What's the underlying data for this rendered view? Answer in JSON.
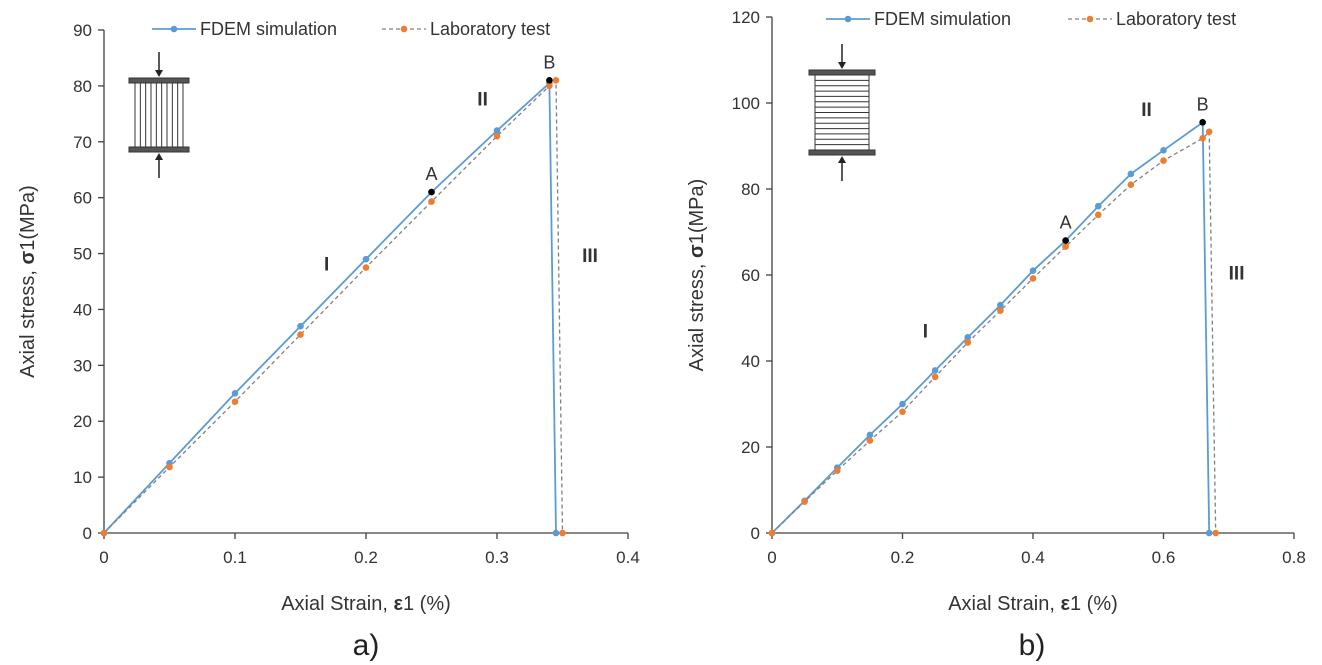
{
  "colors": {
    "fdem": "#5b9bd5",
    "lab": "#ed7d31",
    "lab_line": "#808080",
    "marker": "#000000"
  },
  "chart_data": [
    {
      "type": "line",
      "panel_label": "a)",
      "xlabel_prefix": "Axial Strain, ",
      "xlabel_symbol": "ε",
      "xlabel_suffix": "1 (%)",
      "ylabel_prefix": "Axial stress, ",
      "ylabel_symbol": "σ",
      "ylabel_suffix": "1(MPa)",
      "xlim": [
        0,
        0.4
      ],
      "ylim": [
        0,
        90
      ],
      "xticks": [
        "0",
        "0.1",
        "0.2",
        "0.3",
        "0.4"
      ],
      "yticks": [
        "0",
        "10",
        "20",
        "30",
        "40",
        "50",
        "60",
        "70",
        "80",
        "90"
      ],
      "grid": false,
      "legend_position": "top",
      "series": [
        {
          "name": "FDEM simulation",
          "style": "solid",
          "x": [
            0,
            0.05,
            0.1,
            0.15,
            0.2,
            0.25,
            0.3,
            0.34,
            0.345
          ],
          "y": [
            0,
            12.5,
            25,
            37,
            49,
            61,
            72,
            80.5,
            0
          ]
        },
        {
          "name": "Laboratory test",
          "style": "dashed",
          "x": [
            0,
            0.05,
            0.1,
            0.15,
            0.2,
            0.25,
            0.3,
            0.34,
            0.345,
            0.35
          ],
          "y": [
            0,
            11.8,
            23.5,
            35.5,
            47.5,
            59.3,
            71,
            80,
            81,
            0
          ]
        }
      ],
      "points": [
        {
          "label": "A",
          "x": 0.25,
          "y": 61
        },
        {
          "label": "B",
          "x": 0.34,
          "y": 81
        }
      ],
      "regions": [
        {
          "label": "I",
          "x": 0.17,
          "y": 47
        },
        {
          "label": "II",
          "x": 0.289,
          "y": 76.5
        },
        {
          "label": "III",
          "x": 0.371,
          "y": 48.5
        }
      ],
      "specimen": "vertical"
    },
    {
      "type": "line",
      "panel_label": "b)",
      "xlabel_prefix": "Axial Strain, ",
      "xlabel_symbol": "ε",
      "xlabel_suffix": "1 (%)",
      "ylabel_prefix": "Axial stress, ",
      "ylabel_symbol": "σ",
      "ylabel_suffix": "1(MPa)",
      "xlim": [
        0,
        0.8
      ],
      "ylim": [
        0,
        120
      ],
      "xticks": [
        "0",
        "0.2",
        "0.4",
        "0.6",
        "0.8"
      ],
      "yticks": [
        "0",
        "20",
        "40",
        "60",
        "80",
        "100",
        "120"
      ],
      "grid": false,
      "legend_position": "top",
      "series": [
        {
          "name": "FDEM simulation",
          "style": "solid",
          "x": [
            0,
            0.05,
            0.1,
            0.15,
            0.2,
            0.25,
            0.3,
            0.35,
            0.4,
            0.45,
            0.5,
            0.55,
            0.6,
            0.66,
            0.67
          ],
          "y": [
            0,
            7.5,
            15.2,
            22.8,
            30,
            37.8,
            45.5,
            53,
            61,
            68,
            76,
            83.5,
            89,
            95.5,
            0
          ]
        },
        {
          "name": "Laboratory test",
          "style": "dashed",
          "x": [
            0,
            0.05,
            0.1,
            0.15,
            0.2,
            0.25,
            0.3,
            0.35,
            0.4,
            0.45,
            0.5,
            0.55,
            0.6,
            0.66,
            0.67,
            0.68
          ],
          "y": [
            0,
            7.3,
            14.5,
            21.5,
            28.2,
            36.3,
            44.3,
            51.7,
            59.2,
            66.6,
            74,
            81,
            86.6,
            91.8,
            93.3,
            0
          ]
        }
      ],
      "points": [
        {
          "label": "A",
          "x": 0.45,
          "y": 68
        },
        {
          "label": "B",
          "x": 0.66,
          "y": 95.5
        }
      ],
      "regions": [
        {
          "label": "I",
          "x": 0.235,
          "y": 45.5
        },
        {
          "label": "II",
          "x": 0.574,
          "y": 97
        },
        {
          "label": "III",
          "x": 0.712,
          "y": 59
        }
      ],
      "specimen": "horizontal"
    }
  ]
}
